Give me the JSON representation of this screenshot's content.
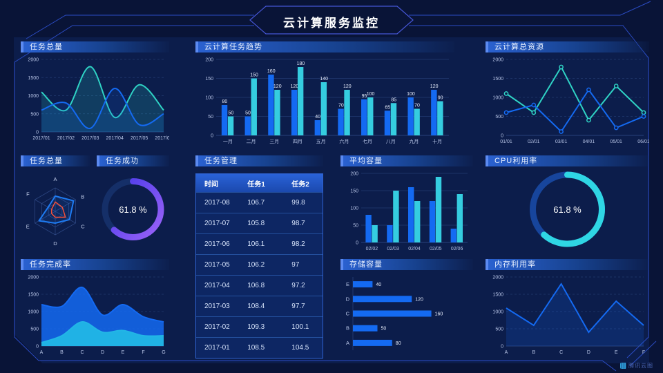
{
  "header": {
    "title": "云计算服务监控"
  },
  "watermark": {
    "label": "腾讯云图"
  },
  "panels": {
    "tasks_total_line": {
      "title": "任务总量"
    },
    "task_trend": {
      "title": "云计算任务趋势"
    },
    "total_resources": {
      "title": "云计算总资源"
    },
    "tasks_total_radar": {
      "title": "任务总量"
    },
    "task_success": {
      "title": "任务成功"
    },
    "task_management": {
      "title": "任务管理"
    },
    "avg_capacity": {
      "title": "平均容量"
    },
    "cpu_usage": {
      "title": "CPU利用率"
    },
    "completion_rate": {
      "title": "任务完成率"
    },
    "storage_capacity": {
      "title": "存储容量"
    },
    "memory_usage": {
      "title": "内存利用率"
    }
  },
  "table": {
    "columns": [
      "时间",
      "任务1",
      "任务2"
    ],
    "rows": [
      [
        "2017-08",
        "106.7",
        "99.8"
      ],
      [
        "2017-07",
        "105.8",
        "98.7"
      ],
      [
        "2017-06",
        "106.1",
        "98.2"
      ],
      [
        "2017-05",
        "106.2",
        "97"
      ],
      [
        "2017-04",
        "106.8",
        "97.2"
      ],
      [
        "2017-03",
        "108.4",
        "97.7"
      ],
      [
        "2017-02",
        "109.3",
        "100.1"
      ],
      [
        "2017-01",
        "108.5",
        "104.5"
      ]
    ]
  },
  "colors": {
    "blue": "#146af2",
    "cyan": "#35cde0",
    "teal": "#2fd3c5",
    "cyan2": "#22b6e6",
    "blue2": "#1e7bf2",
    "red": "#f4503a",
    "axis": "#b9c6e8",
    "grid": "#34508f",
    "label": "#e8eefc",
    "bg": "#0c1d4b"
  },
  "chart_data": [
    {
      "type": "line",
      "smooth": true,
      "dash": true,
      "title": "任务总量",
      "categories": [
        "2017/01",
        "2017/02",
        "2017/03",
        "2017/04",
        "2017/05",
        "2017/06"
      ],
      "series": [
        {
          "name": "series-teal",
          "values": [
            1100,
            600,
            1800,
            400,
            1300,
            600
          ],
          "color": "teal",
          "fill": true,
          "fill_opacity": 0.18
        },
        {
          "name": "series-blue",
          "values": [
            600,
            800,
            100,
            1200,
            200,
            500
          ],
          "color": "blue",
          "fill": true,
          "fill_opacity": 0.15
        }
      ],
      "ylim": [
        0,
        2000
      ],
      "yticks": [
        0,
        500,
        1000,
        1500,
        2000
      ]
    },
    {
      "type": "bar",
      "dash": false,
      "value_labels": true,
      "title": "云计算任务趋势",
      "categories": [
        "一月",
        "二月",
        "三月",
        "四月",
        "五月",
        "六月",
        "七月",
        "八月",
        "九月",
        "十月"
      ],
      "series": [
        {
          "name": "任务1",
          "values": [
            80,
            50,
            160,
            120,
            40,
            70,
            95,
            65,
            100,
            120
          ],
          "color": "blue"
        },
        {
          "name": "任务2",
          "values": [
            50,
            150,
            120,
            180,
            140,
            120,
            100,
            85,
            70,
            90
          ],
          "color": "cyan"
        }
      ],
      "ylim": [
        0,
        200
      ],
      "yticks": [
        0,
        50,
        100,
        150,
        200
      ]
    },
    {
      "type": "line",
      "smooth": false,
      "dash": true,
      "markers": true,
      "title": "云计算总资源",
      "categories": [
        "01/01",
        "02/01",
        "03/01",
        "04/01",
        "05/01",
        "06/01"
      ],
      "series": [
        {
          "name": "series-teal",
          "values": [
            1100,
            600,
            1800,
            400,
            1300,
            600
          ],
          "color": "teal"
        },
        {
          "name": "series-blue",
          "values": [
            600,
            800,
            100,
            1200,
            200,
            500
          ],
          "color": "blue"
        }
      ],
      "ylim": [
        0,
        2000
      ],
      "yticks": [
        0,
        500,
        1000,
        1500,
        2000
      ]
    },
    {
      "type": "radar",
      "title": "任务总量",
      "axes": [
        "A",
        "B",
        "C",
        "D",
        "E",
        "F"
      ],
      "max": 100,
      "levels": 3,
      "series": [
        {
          "name": "series-blue",
          "values": [
            65,
            90,
            70,
            50,
            80,
            35
          ],
          "color": "blue2"
        },
        {
          "name": "series-red",
          "values": [
            40,
            35,
            50,
            25,
            18,
            18
          ],
          "color": "red"
        }
      ]
    },
    {
      "type": "donut",
      "title": "任务成功",
      "value": 61.8,
      "label": "61.8 %",
      "arc_colors": [
        "#4a3ae8",
        "#9b63f8"
      ],
      "track": "#152f68"
    },
    {
      "type": "bar",
      "dash": false,
      "value_labels": false,
      "title": "平均容量",
      "categories": [
        "02/02",
        "02/03",
        "02/04",
        "02/05",
        "02/06"
      ],
      "series": [
        {
          "name": "series-blue",
          "values": [
            80,
            50,
            160,
            120,
            40
          ],
          "color": "blue"
        },
        {
          "name": "series-cyan",
          "values": [
            50,
            150,
            120,
            190,
            140
          ],
          "color": "cyan"
        }
      ],
      "ylim": [
        0,
        200
      ],
      "yticks": [
        0,
        50,
        100,
        150,
        200
      ]
    },
    {
      "type": "donut",
      "title": "CPU利用率",
      "value": 61.8,
      "label": "61.8 %",
      "arc_colors": [
        "#2fd6e4",
        "#2fd6e4"
      ],
      "track": "#17459c"
    },
    {
      "type": "line",
      "smooth": true,
      "dash": true,
      "title": "任务完成率",
      "categories": [
        "A",
        "B",
        "C",
        "D",
        "E",
        "F",
        "G"
      ],
      "series": [
        {
          "name": "layer-blue-total",
          "values": [
            1200,
            1150,
            1700,
            900,
            1200,
            850,
            700
          ],
          "color": "blue",
          "fill": true,
          "fill_opacity": 0.85
        },
        {
          "name": "layer-cyan",
          "values": [
            100,
            300,
            700,
            400,
            450,
            300,
            300
          ],
          "color": "cyan2",
          "fill": true,
          "fill_opacity": 0.95
        }
      ],
      "ylim": [
        0,
        2000
      ],
      "yticks": [
        0,
        500,
        1000,
        1500,
        2000
      ]
    },
    {
      "type": "hbar",
      "title": "存储容量",
      "value_labels": true,
      "categories": [
        "E",
        "D",
        "C",
        "B",
        "A"
      ],
      "values": [
        40,
        120,
        160,
        50,
        80
      ],
      "xlim": [
        0,
        200
      ],
      "color": "blue"
    },
    {
      "type": "line",
      "smooth": false,
      "dash": true,
      "title": "内存利用率",
      "categories": [
        "A",
        "B",
        "C",
        "D",
        "E",
        "F"
      ],
      "series": [
        {
          "name": "series-blue",
          "values": [
            1100,
            600,
            1800,
            400,
            1300,
            600
          ],
          "color": "blue",
          "fill": true,
          "fill_opacity": 0.18
        }
      ],
      "ylim": [
        0,
        2000
      ],
      "yticks": [
        0,
        500,
        1000,
        1500,
        2000
      ]
    }
  ]
}
